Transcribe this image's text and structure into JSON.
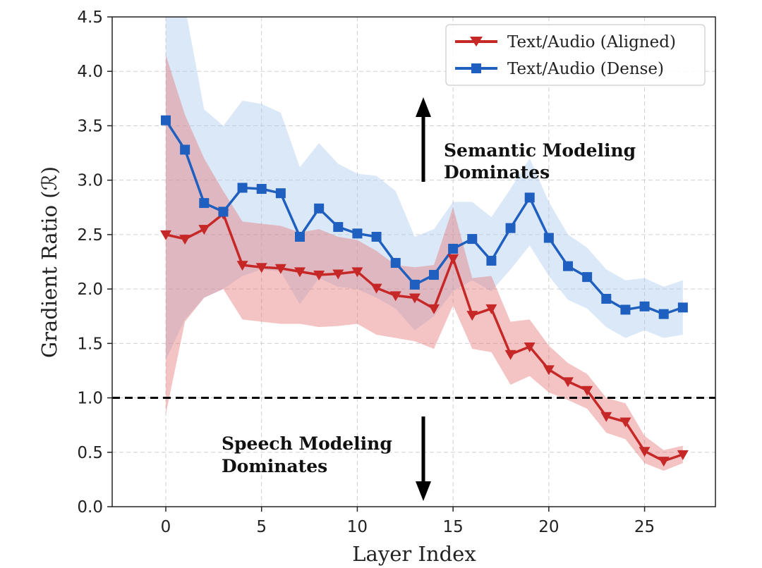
{
  "chart_data": {
    "type": "line",
    "xlabel": "Layer Index",
    "ylabel": "Gradient Ratio (ℛ)",
    "xlim": [
      -2.8,
      28.7
    ],
    "ylim": [
      0,
      4.5
    ],
    "x_ticks": [
      "0",
      "5",
      "10",
      "15",
      "20",
      "25"
    ],
    "y_ticks": [
      "0.0",
      "0.5",
      "1.0",
      "1.5",
      "2.0",
      "2.5",
      "3.0",
      "3.5",
      "4.0",
      "4.5"
    ],
    "grid": true,
    "legend_position": "top-right",
    "reference_line": {
      "y": 1.0,
      "style": "dashed",
      "color": "#000000"
    },
    "x": [
      0,
      1,
      2,
      3,
      4,
      5,
      6,
      7,
      8,
      9,
      10,
      11,
      12,
      13,
      14,
      15,
      16,
      17,
      18,
      19,
      20,
      21,
      22,
      23,
      24,
      25,
      26,
      27
    ],
    "series": [
      {
        "name": "Text/Audio (Aligned)",
        "color": "#c62828",
        "band_color": "#e57373",
        "marker": "triangle-down",
        "values": [
          2.5,
          2.46,
          2.55,
          2.69,
          2.22,
          2.2,
          2.19,
          2.16,
          2.13,
          2.14,
          2.16,
          2.01,
          1.94,
          1.92,
          1.82,
          2.28,
          1.76,
          1.82,
          1.4,
          1.47,
          1.26,
          1.15,
          1.07,
          0.83,
          0.78,
          0.51,
          0.42,
          0.48
        ],
        "band_upper": [
          4.15,
          3.6,
          3.2,
          2.9,
          2.62,
          2.6,
          2.58,
          2.52,
          2.55,
          2.48,
          2.45,
          2.35,
          2.22,
          2.2,
          2.22,
          2.75,
          2.1,
          2.12,
          1.7,
          1.72,
          1.48,
          1.32,
          1.22,
          1.0,
          0.95,
          0.65,
          0.52,
          0.56
        ],
        "band_lower": [
          0.85,
          1.7,
          1.92,
          2.0,
          1.72,
          1.7,
          1.68,
          1.68,
          1.65,
          1.66,
          1.68,
          1.58,
          1.55,
          1.52,
          1.45,
          1.85,
          1.45,
          1.42,
          1.12,
          1.2,
          1.05,
          0.98,
          0.9,
          0.68,
          0.62,
          0.4,
          0.33,
          0.4
        ]
      },
      {
        "name": "Text/Audio (Dense)",
        "color": "#1f5fbf",
        "band_color": "#a9c8ee",
        "marker": "square",
        "values": [
          3.55,
          3.28,
          2.79,
          2.71,
          2.93,
          2.92,
          2.88,
          2.48,
          2.74,
          2.57,
          2.51,
          2.48,
          2.24,
          2.04,
          2.13,
          2.37,
          2.46,
          2.26,
          2.56,
          2.84,
          2.47,
          2.21,
          2.11,
          1.91,
          1.81,
          1.84,
          1.77,
          1.83
        ],
        "band_upper": [
          4.6,
          4.6,
          3.65,
          3.5,
          3.73,
          3.7,
          3.62,
          3.12,
          3.34,
          3.15,
          3.06,
          3.04,
          2.9,
          2.48,
          2.55,
          2.8,
          2.8,
          2.66,
          2.92,
          3.2,
          2.8,
          2.5,
          2.38,
          2.18,
          2.08,
          2.1,
          2.02,
          2.08
        ],
        "band_lower": [
          1.35,
          1.72,
          1.92,
          2.0,
          2.12,
          2.18,
          2.16,
          1.86,
          2.1,
          2.02,
          2.0,
          1.92,
          1.82,
          1.62,
          1.75,
          1.98,
          2.08,
          1.98,
          2.18,
          2.4,
          2.12,
          1.9,
          1.82,
          1.65,
          1.55,
          1.62,
          1.55,
          1.58
        ]
      }
    ],
    "annotations": [
      {
        "text_lines": [
          "Semantic Modeling",
          "Dominates"
        ],
        "arrow": "up"
      },
      {
        "text_lines": [
          "Speech Modeling",
          "Dominates"
        ],
        "arrow": "down"
      }
    ]
  }
}
